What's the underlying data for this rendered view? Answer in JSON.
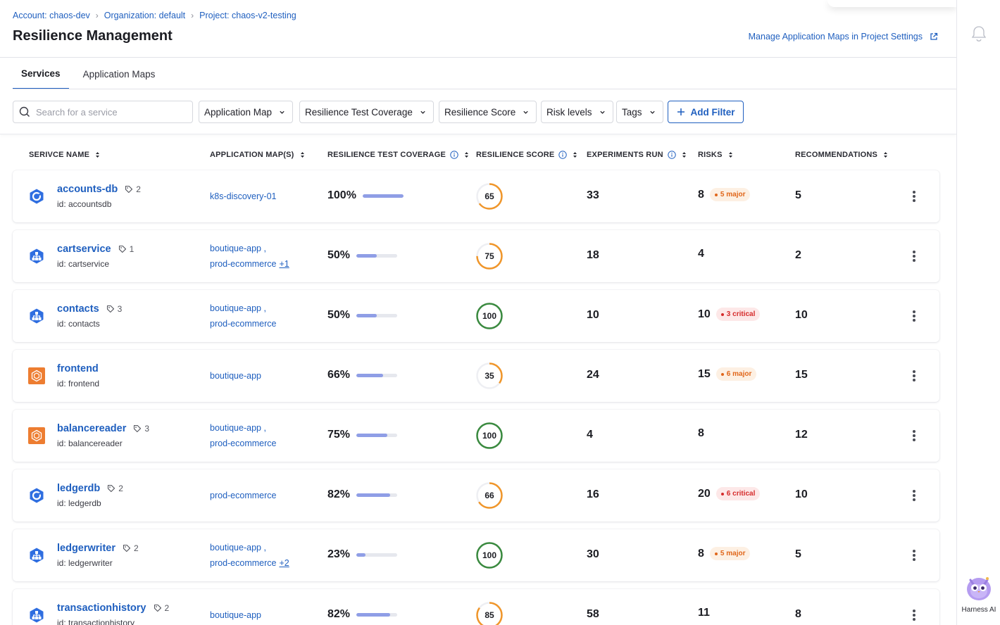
{
  "breadcrumb": [
    "Account: chaos-dev",
    "Organization: default",
    "Project: chaos-v2-testing"
  ],
  "title": "Resilience Management",
  "manage_link": "Manage Application Maps in Project Settings",
  "tabs": [
    "Services",
    "Application Maps"
  ],
  "search_placeholder": "Search for a service",
  "filters": [
    "Application Map",
    "Resilience Test Coverage",
    "Resilience Score",
    "Risk levels",
    "Tags"
  ],
  "add_filter": "Add Filter",
  "columns": {
    "service": "SERIVCE NAME",
    "maps": "APPLICATION MAP(S)",
    "coverage": "RESILIENCE TEST COVERAGE",
    "score": "RESILIENCE SCORE",
    "experiments": "EXPERIMENTS RUN",
    "risks": "RISKS",
    "recommendations": "RECOMMENDATIONS"
  },
  "colors": {
    "link": "#1f5fbf",
    "score_orange": "#f0962a",
    "score_green": "#3a8a3f",
    "coverage_bar": "#8f9ee6",
    "major_badge_text": "#e0661a",
    "critical_badge_text": "#d52b2b"
  },
  "rows": [
    {
      "name": "accounts-db",
      "tags": "2",
      "id": "id: accountsdb",
      "icon": "pod-icon",
      "maps": [
        "k8s-discovery-01"
      ],
      "maps_more": "",
      "coverage": "100%",
      "coverage_pct": 100,
      "score": "65",
      "experiments": "33",
      "risks": "8",
      "badge": "5 major",
      "badge_type": "major",
      "recommendations": "5"
    },
    {
      "name": "cartservice",
      "tags": "1",
      "id": "id: cartservice",
      "icon": "kubernetes-icon",
      "maps": [
        "boutique-app ,",
        "prod-ecommerce"
      ],
      "maps_more": "+1",
      "coverage": "50%",
      "coverage_pct": 50,
      "score": "75",
      "experiments": "18",
      "risks": "4",
      "badge": "",
      "badge_type": "",
      "recommendations": "2"
    },
    {
      "name": "contacts",
      "tags": "3",
      "id": "id: contacts",
      "icon": "kubernetes-icon",
      "maps": [
        "boutique-app ,",
        "prod-ecommerce"
      ],
      "maps_more": "",
      "coverage": "50%",
      "coverage_pct": 50,
      "score": "100",
      "experiments": "10",
      "risks": "10",
      "badge": "3 critical",
      "badge_type": "critical",
      "recommendations": "10"
    },
    {
      "name": "frontend",
      "tags": "",
      "id": "id: frontend",
      "icon": "aws-icon",
      "maps": [
        "boutique-app"
      ],
      "maps_more": "",
      "coverage": "66%",
      "coverage_pct": 66,
      "score": "35",
      "experiments": "24",
      "risks": "15",
      "badge": "6 major",
      "badge_type": "major",
      "recommendations": "15"
    },
    {
      "name": "balancereader",
      "tags": "3",
      "id": "id: balancereader",
      "icon": "aws-icon",
      "maps": [
        "boutique-app ,",
        "prod-ecommerce"
      ],
      "maps_more": "",
      "coverage": "75%",
      "coverage_pct": 75,
      "score": "100",
      "experiments": "4",
      "risks": "8",
      "badge": "",
      "badge_type": "",
      "recommendations": "12"
    },
    {
      "name": "ledgerdb",
      "tags": "2",
      "id": "id: ledgerdb",
      "icon": "pod-icon",
      "maps": [
        "prod-ecommerce"
      ],
      "maps_more": "",
      "coverage": "82%",
      "coverage_pct": 82,
      "score": "66",
      "experiments": "16",
      "risks": "20",
      "badge": "6 critical",
      "badge_type": "critical",
      "recommendations": "10"
    },
    {
      "name": "ledgerwriter",
      "tags": "2",
      "id": "id: ledgerwriter",
      "icon": "kubernetes-icon",
      "maps": [
        "boutique-app ,",
        "prod-ecommerce"
      ],
      "maps_more": "+2",
      "coverage": "23%",
      "coverage_pct": 23,
      "score": "100",
      "experiments": "30",
      "risks": "8",
      "badge": "5 major",
      "badge_type": "major",
      "recommendations": "5"
    },
    {
      "name": "transactionhistory",
      "tags": "2",
      "id": "id: transactionhistory",
      "icon": "kubernetes-icon",
      "maps": [
        "boutique-app"
      ],
      "maps_more": "",
      "coverage": "82%",
      "coverage_pct": 82,
      "score": "85",
      "experiments": "58",
      "risks": "11",
      "badge": "",
      "badge_type": "",
      "recommendations": "8"
    }
  ],
  "assistant_label": "Harness AI"
}
